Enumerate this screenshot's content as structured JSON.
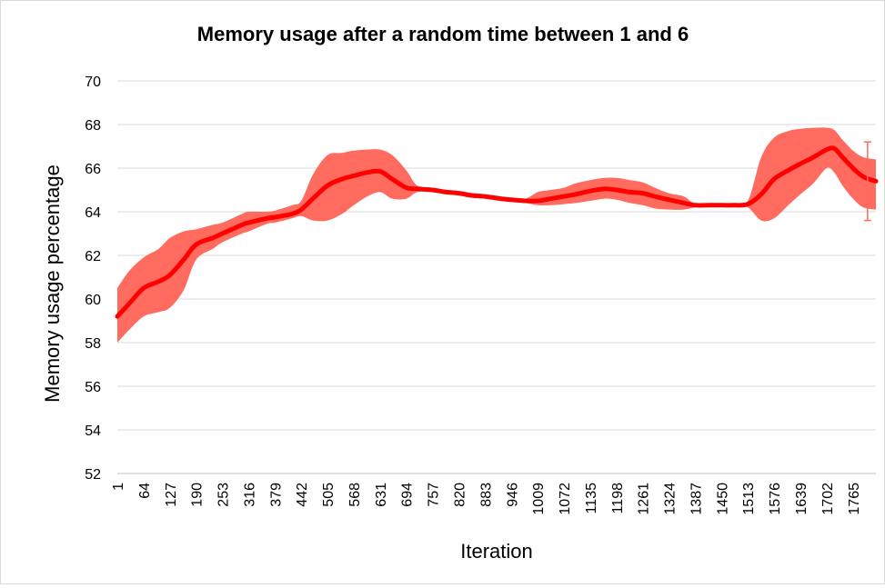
{
  "chart_data": {
    "type": "area",
    "title": "Memory usage after a random time between 1 and 6",
    "xlabel": "Iteration",
    "ylabel": "Memory usage percentage",
    "ylim": [
      52,
      70
    ],
    "yticks": [
      52,
      54,
      56,
      58,
      60,
      62,
      64,
      66,
      68,
      70
    ],
    "xlim": [
      1,
      1820
    ],
    "xticks": [
      "1",
      "64",
      "127",
      "190",
      "253",
      "316",
      "379",
      "442",
      "505",
      "568",
      "631",
      "694",
      "757",
      "820",
      "883",
      "946",
      "1009",
      "1072",
      "1135",
      "1198",
      "1261",
      "1324",
      "1387",
      "1450",
      "1513",
      "1576",
      "1639",
      "1702",
      "1765"
    ],
    "grid": true,
    "legend": "none",
    "colors": {
      "line": "#ff0000",
      "band": "#ff6b5e"
    },
    "series": [
      {
        "x": [
          1,
          30,
          64,
          100,
          127,
          160,
          190,
          230,
          253,
          300,
          316,
          360,
          379,
          420,
          442,
          470,
          505,
          540,
          568,
          600,
          631,
          660,
          694,
          720,
          757,
          790,
          820,
          850,
          883,
          920,
          946,
          980,
          1009,
          1040,
          1072,
          1100,
          1135,
          1170,
          1198,
          1230,
          1261,
          1290,
          1324,
          1360,
          1387,
          1420,
          1450,
          1480,
          1513,
          1545,
          1576,
          1610,
          1639,
          1670,
          1702,
          1720,
          1740,
          1765,
          1790,
          1820
        ],
        "y": [
          59.2,
          59.8,
          60.5,
          60.8,
          61.1,
          61.8,
          62.5,
          62.8,
          63.0,
          63.4,
          63.5,
          63.7,
          63.75,
          63.9,
          64.1,
          64.6,
          65.2,
          65.5,
          65.65,
          65.8,
          65.85,
          65.5,
          65.1,
          65.05,
          65.0,
          64.9,
          64.85,
          64.75,
          64.7,
          64.6,
          64.55,
          64.5,
          64.5,
          64.6,
          64.7,
          64.8,
          64.95,
          65.05,
          65.0,
          64.9,
          64.85,
          64.7,
          64.55,
          64.4,
          64.3,
          64.3,
          64.3,
          64.3,
          64.35,
          64.8,
          65.5,
          65.9,
          66.2,
          66.5,
          66.85,
          66.9,
          66.5,
          66.0,
          65.6,
          65.4
        ],
        "upper": [
          60.5,
          61.3,
          61.9,
          62.3,
          62.8,
          63.1,
          63.2,
          63.4,
          63.5,
          63.9,
          64.0,
          64.0,
          64.05,
          64.3,
          64.5,
          65.7,
          66.6,
          66.7,
          66.8,
          66.85,
          66.85,
          66.6,
          65.9,
          65.2,
          65.1,
          65.0,
          64.95,
          64.85,
          64.8,
          64.7,
          64.65,
          64.6,
          64.9,
          65.0,
          65.1,
          65.3,
          65.45,
          65.55,
          65.55,
          65.45,
          65.35,
          65.1,
          64.85,
          64.7,
          64.35,
          64.35,
          64.35,
          64.35,
          64.5,
          66.5,
          67.4,
          67.7,
          67.8,
          67.85,
          67.85,
          67.75,
          67.3,
          66.8,
          66.5,
          66.4
        ],
        "lower": [
          58.0,
          58.6,
          59.2,
          59.4,
          59.6,
          60.4,
          61.8,
          62.3,
          62.6,
          63.0,
          63.1,
          63.45,
          63.5,
          63.7,
          63.8,
          63.6,
          63.6,
          63.9,
          64.3,
          64.7,
          64.9,
          64.6,
          64.6,
          64.9,
          64.9,
          64.8,
          64.75,
          64.65,
          64.6,
          64.5,
          64.45,
          64.4,
          64.3,
          64.3,
          64.35,
          64.4,
          64.5,
          64.6,
          64.55,
          64.4,
          64.3,
          64.15,
          64.1,
          64.1,
          64.2,
          64.25,
          64.25,
          64.25,
          64.2,
          63.6,
          63.7,
          64.3,
          64.8,
          65.3,
          66.0,
          65.8,
          65.2,
          64.6,
          64.2,
          64.1
        ],
        "error_bar": {
          "x": 1800,
          "low": 63.6,
          "high": 67.2
        }
      }
    ]
  }
}
